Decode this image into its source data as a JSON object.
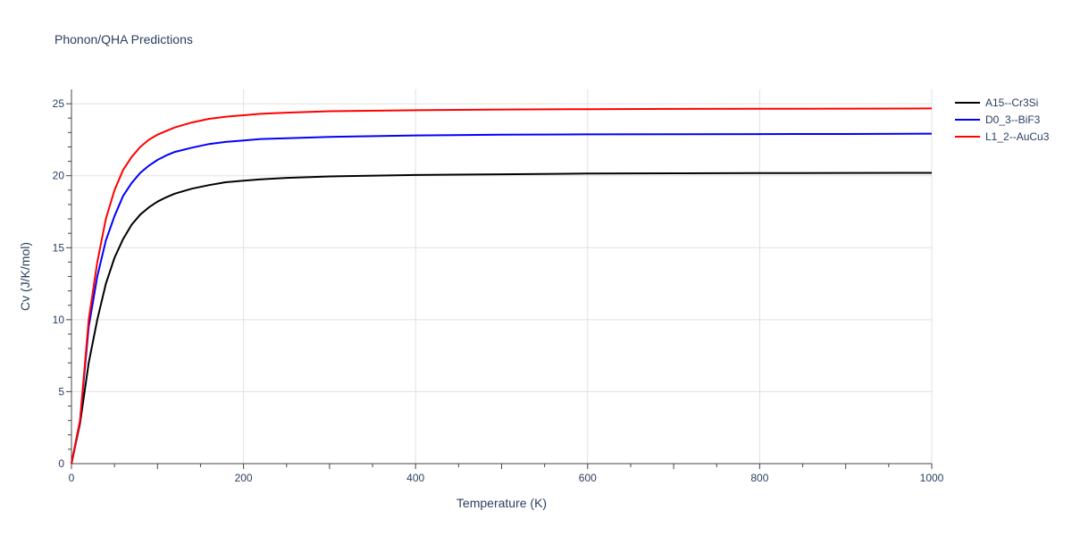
{
  "chart_data": {
    "type": "line",
    "title": "Phonon/QHA Predictions",
    "xlabel": "Temperature (K)",
    "ylabel": "Cv (J/K/mol)",
    "xlim": [
      0,
      1000
    ],
    "ylim": [
      0,
      26
    ],
    "xticks": [
      0,
      200,
      400,
      600,
      800,
      1000
    ],
    "yticks": [
      0,
      5,
      10,
      15,
      20,
      25
    ],
    "grid": true,
    "legend_position": "right",
    "series": [
      {
        "name": "A15--Cr3Si",
        "color": "#000000",
        "x": [
          0,
          10,
          20,
          30,
          40,
          50,
          60,
          70,
          80,
          90,
          100,
          110,
          120,
          140,
          160,
          180,
          200,
          220,
          250,
          300,
          400,
          500,
          600,
          700,
          800,
          900,
          1000
        ],
        "y": [
          0,
          2.8,
          7.0,
          10.0,
          12.5,
          14.3,
          15.6,
          16.6,
          17.3,
          17.8,
          18.2,
          18.5,
          18.75,
          19.1,
          19.35,
          19.55,
          19.65,
          19.75,
          19.85,
          19.95,
          20.05,
          20.1,
          20.15,
          20.17,
          20.18,
          20.19,
          20.2
        ]
      },
      {
        "name": "D0_3--BiF3",
        "color": "#0000ff",
        "x": [
          0,
          10,
          20,
          30,
          40,
          50,
          60,
          70,
          80,
          90,
          100,
          110,
          120,
          140,
          160,
          180,
          200,
          220,
          250,
          300,
          400,
          500,
          600,
          700,
          800,
          900,
          1000
        ],
        "y": [
          0,
          3.0,
          9.5,
          13.0,
          15.5,
          17.2,
          18.6,
          19.5,
          20.2,
          20.7,
          21.1,
          21.4,
          21.65,
          21.95,
          22.2,
          22.35,
          22.45,
          22.55,
          22.6,
          22.7,
          22.8,
          22.85,
          22.87,
          22.88,
          22.89,
          22.9,
          22.92
        ]
      },
      {
        "name": "L1_2--AuCu3",
        "color": "#ff0000",
        "x": [
          0,
          10,
          20,
          30,
          40,
          50,
          60,
          70,
          80,
          90,
          100,
          110,
          120,
          140,
          160,
          180,
          200,
          220,
          250,
          300,
          400,
          500,
          600,
          700,
          800,
          900,
          1000
        ],
        "y": [
          0,
          3.0,
          10.0,
          14.0,
          17.0,
          19.0,
          20.4,
          21.3,
          22.0,
          22.5,
          22.85,
          23.1,
          23.35,
          23.7,
          23.95,
          24.1,
          24.2,
          24.3,
          24.38,
          24.48,
          24.55,
          24.6,
          24.62,
          24.64,
          24.65,
          24.66,
          24.67
        ]
      }
    ]
  }
}
